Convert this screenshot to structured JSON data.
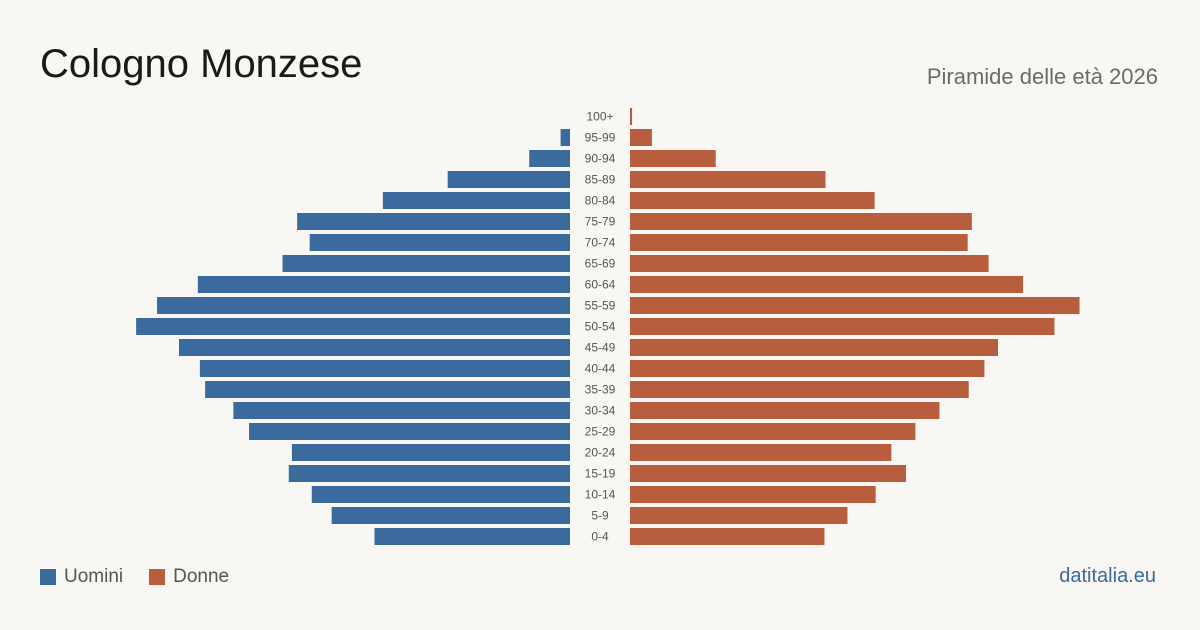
{
  "header": {
    "title": "Cologno Monzese",
    "subtitle": "Piramide delle età 2026"
  },
  "legend": {
    "men_label": "Uomini",
    "women_label": "Donne"
  },
  "footer": {
    "brand": "datitalia.eu"
  },
  "colors": {
    "men": "#3b6a9c",
    "women": "#b85e3e",
    "background": "#f9f7f3",
    "label": "#555555"
  },
  "chart_data": {
    "type": "bar",
    "orientation": "horizontal",
    "layout": "population-pyramid",
    "categories": [
      "100+",
      "95-99",
      "90-94",
      "85-89",
      "80-84",
      "75-79",
      "70-74",
      "65-69",
      "60-64",
      "55-59",
      "50-54",
      "45-49",
      "40-44",
      "35-39",
      "30-34",
      "25-29",
      "20-24",
      "15-19",
      "10-14",
      "5-9",
      "0-4"
    ],
    "series": [
      {
        "name": "Uomini",
        "values": [
          0,
          9,
          39,
          117,
          179,
          261,
          249,
          275,
          356,
          395,
          415,
          374,
          354,
          349,
          322,
          307,
          266,
          269,
          247,
          228,
          187
        ]
      },
      {
        "name": "Donne",
        "values": [
          2,
          21,
          82,
          187,
          234,
          327,
          323,
          343,
          376,
          430,
          406,
          352,
          339,
          324,
          296,
          273,
          250,
          264,
          235,
          208,
          186
        ]
      }
    ],
    "xlim": [
      0,
      440
    ],
    "grid": false,
    "axes_visible": false,
    "legend_position": "bottom-left"
  }
}
